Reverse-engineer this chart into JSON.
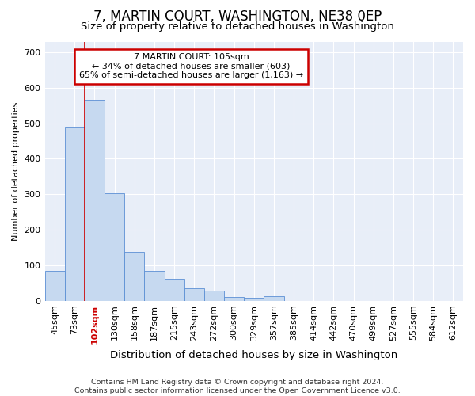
{
  "title": "7, MARTIN COURT, WASHINGTON, NE38 0EP",
  "subtitle": "Size of property relative to detached houses in Washington",
  "xlabel": "Distribution of detached houses by size in Washington",
  "ylabel": "Number of detached properties",
  "annotation_line1": "7 MARTIN COURT: 105sqm",
  "annotation_line2": "← 34% of detached houses are smaller (603)",
  "annotation_line3": "65% of semi-detached houses are larger (1,163) →",
  "footer_line1": "Contains HM Land Registry data © Crown copyright and database right 2024.",
  "footer_line2": "Contains public sector information licensed under the Open Government Licence v3.0.",
  "bin_labels": [
    "45sqm",
    "73sqm",
    "102sqm",
    "130sqm",
    "158sqm",
    "187sqm",
    "215sqm",
    "243sqm",
    "272sqm",
    "300sqm",
    "329sqm",
    "357sqm",
    "385sqm",
    "414sqm",
    "442sqm",
    "470sqm",
    "499sqm",
    "527sqm",
    "555sqm",
    "584sqm",
    "612sqm"
  ],
  "bar_heights": [
    83,
    490,
    565,
    302,
    138,
    85,
    62,
    35,
    28,
    10,
    8,
    12,
    0,
    0,
    0,
    0,
    0,
    0,
    0,
    0,
    0
  ],
  "bar_color": "#c6d9f0",
  "bar_edge_color": "#5b8fd4",
  "red_line_index": 2,
  "ylim": [
    0,
    730
  ],
  "yticks": [
    0,
    100,
    200,
    300,
    400,
    500,
    600,
    700
  ],
  "background_color": "#e8eef8",
  "grid_color": "#ffffff",
  "annotation_box_color": "#ffffff",
  "annotation_box_edge": "#cc0000",
  "red_line_color": "#cc0000",
  "title_fontsize": 12,
  "subtitle_fontsize": 9.5,
  "xlabel_fontsize": 9.5,
  "ylabel_fontsize": 8,
  "tick_fontsize": 8,
  "annotation_fontsize": 8,
  "footer_fontsize": 6.8
}
